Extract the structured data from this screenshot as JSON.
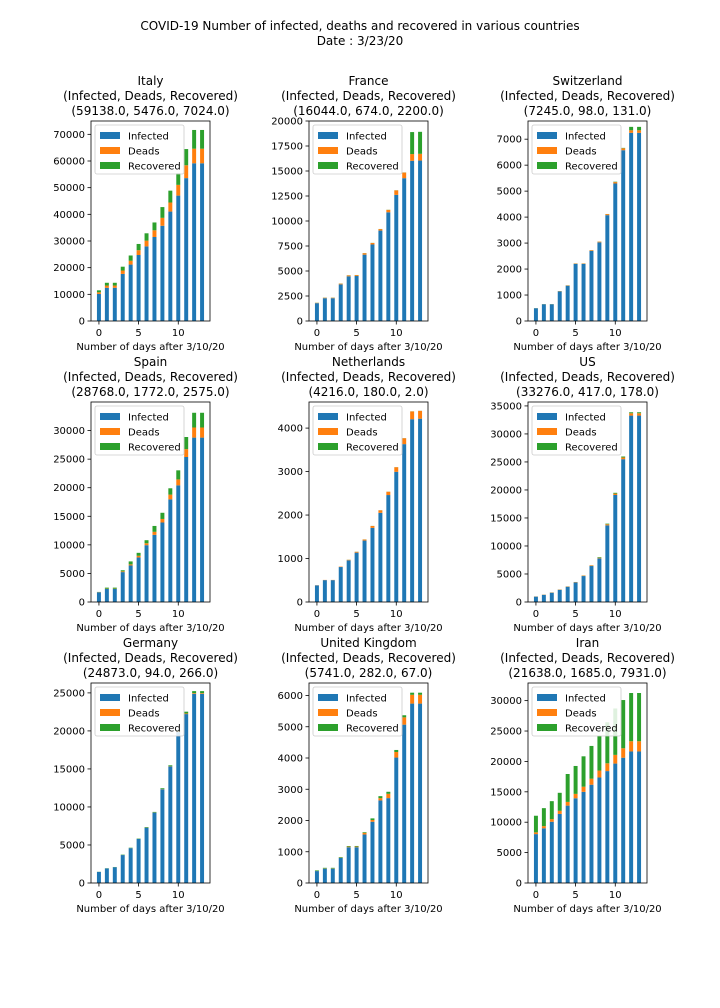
{
  "figure": {
    "title": "COVID-19 Number of infected, deaths and recovered in various countries",
    "subtitle": "Date : 3/23/20",
    "colors": {
      "infected": "#1f77b4",
      "deaths": "#ff7f0e",
      "recovered": "#2ca02c"
    }
  },
  "chart_data": [
    {
      "type": "bar",
      "stacked": true,
      "title": "Italy",
      "subtitle": "(Infected, Deads, Recovered)",
      "totals_label": "(59138.0,  5476.0,  7024.0)",
      "xlabel": "Number of days after 3/10/20",
      "ylabel": "",
      "x": [
        0,
        1,
        2,
        3,
        4,
        5,
        6,
        7,
        8,
        9,
        10,
        11,
        12,
        13
      ],
      "xticks": [
        0,
        5,
        10
      ],
      "ylim": [
        0,
        75000
      ],
      "yticks": [
        0,
        10000,
        20000,
        30000,
        40000,
        50000,
        60000,
        70000
      ],
      "legend": "top-left",
      "grid": false,
      "series": [
        {
          "name": "Infected",
          "values": [
            10149,
            12462,
            12462,
            17660,
            21157,
            24747,
            27980,
            31506,
            35713,
            41035,
            47021,
            53578,
            59138,
            59138
          ]
        },
        {
          "name": "Deads",
          "values": [
            631,
            827,
            827,
            1266,
            1441,
            1809,
            2158,
            2503,
            2978,
            3405,
            4032,
            4825,
            5476,
            5476
          ]
        },
        {
          "name": "Recovered",
          "values": [
            724,
            1045,
            1045,
            1439,
            1966,
            2335,
            2749,
            2941,
            4025,
            4440,
            4440,
            6072,
            7024,
            7024
          ]
        }
      ]
    },
    {
      "type": "bar",
      "stacked": true,
      "title": "France",
      "subtitle": "(Infected, Deads, Recovered)",
      "totals_label": "(16044.0,  674.0,  2200.0)",
      "xlabel": "Number of days after 3/10/20",
      "ylabel": "",
      "x": [
        0,
        1,
        2,
        3,
        4,
        5,
        6,
        7,
        8,
        9,
        10,
        11,
        12,
        13
      ],
      "xticks": [
        0,
        5,
        10
      ],
      "ylim": [
        0,
        20000
      ],
      "yticks": [
        0,
        2500,
        5000,
        7500,
        10000,
        12500,
        15000,
        17500,
        20000
      ],
      "legend": "top-left",
      "grid": false,
      "series": [
        {
          "name": "Infected",
          "values": [
            1784,
            2281,
            2281,
            3661,
            4469,
            4499,
            6633,
            7652,
            9043,
            10871,
            12612,
            14282,
            16018,
            16044
          ]
        },
        {
          "name": "Deads",
          "values": [
            33,
            48,
            48,
            79,
            91,
            91,
            148,
            148,
            148,
            243,
            450,
            562,
            674,
            674
          ]
        },
        {
          "name": "Recovered",
          "values": [
            12,
            12,
            12,
            12,
            12,
            12,
            12,
            12,
            12,
            12,
            12,
            12,
            2200,
            2200
          ]
        }
      ]
    },
    {
      "type": "bar",
      "stacked": true,
      "title": "Switzerland",
      "subtitle": "(Infected, Deads, Recovered)",
      "totals_label": "(7245.0,  98.0,  131.0)",
      "xlabel": "Number of days after 3/10/20",
      "ylabel": "",
      "x": [
        0,
        1,
        2,
        3,
        4,
        5,
        6,
        7,
        8,
        9,
        10,
        11,
        12,
        13
      ],
      "xticks": [
        0,
        5,
        10
      ],
      "ylim": [
        0,
        7700
      ],
      "yticks": [
        0,
        1000,
        2000,
        3000,
        4000,
        5000,
        6000,
        7000
      ],
      "legend": "top-left",
      "grid": false,
      "series": [
        {
          "name": "Infected",
          "values": [
            491,
            645,
            645,
            1139,
            1359,
            2200,
            2200,
            2700,
            3028,
            4075,
            5294,
            6575,
            7245,
            7245
          ]
        },
        {
          "name": "Deads",
          "values": [
            3,
            4,
            4,
            11,
            13,
            14,
            14,
            27,
            28,
            41,
            54,
            75,
            98,
            98
          ]
        },
        {
          "name": "Recovered",
          "values": [
            3,
            4,
            4,
            4,
            4,
            4,
            4,
            4,
            4,
            4,
            15,
            15,
            131,
            131
          ]
        }
      ]
    },
    {
      "type": "bar",
      "stacked": true,
      "title": "Spain",
      "subtitle": "(Infected, Deads, Recovered)",
      "totals_label": "(28768.0,  1772.0,  2575.0)",
      "xlabel": "Number of days after 3/10/20",
      "ylabel": "",
      "x": [
        0,
        1,
        2,
        3,
        4,
        5,
        6,
        7,
        8,
        9,
        10,
        11,
        12,
        13
      ],
      "xticks": [
        0,
        5,
        10
      ],
      "ylim": [
        0,
        35000
      ],
      "yticks": [
        0,
        5000,
        10000,
        15000,
        20000,
        25000,
        30000
      ],
      "legend": "top-left",
      "grid": false,
      "series": [
        {
          "name": "Infected",
          "values": [
            1695,
            2277,
            2277,
            5232,
            6391,
            7798,
            9942,
            11748,
            13910,
            17963,
            20410,
            25374,
            28768,
            28768
          ]
        },
        {
          "name": "Deads",
          "values": [
            35,
            54,
            55,
            133,
            195,
            289,
            342,
            533,
            623,
            830,
            1043,
            1375,
            1772,
            1772
          ]
        },
        {
          "name": "Recovered",
          "values": [
            32,
            183,
            183,
            193,
            517,
            517,
            530,
            1028,
            1081,
            1107,
            1588,
            2125,
            2575,
            2575
          ]
        }
      ]
    },
    {
      "type": "bar",
      "stacked": true,
      "title": "Netherlands",
      "subtitle": "(Infected, Deads, Recovered)",
      "totals_label": "(4216.0,  180.0,  2.0)",
      "xlabel": "Number of days after 3/10/20",
      "ylabel": "",
      "x": [
        0,
        1,
        2,
        3,
        4,
        5,
        6,
        7,
        8,
        9,
        10,
        11,
        12,
        13
      ],
      "xticks": [
        0,
        5,
        10
      ],
      "ylim": [
        0,
        4600
      ],
      "yticks": [
        0,
        1000,
        2000,
        3000,
        4000
      ],
      "legend": "top-left",
      "grid": false,
      "series": [
        {
          "name": "Infected",
          "values": [
            382,
            503,
            503,
            804,
            959,
            1135,
            1413,
            1705,
            2051,
            2460,
            2994,
            3631,
            4204,
            4216
          ]
        },
        {
          "name": "Deads",
          "values": [
            4,
            5,
            5,
            10,
            12,
            20,
            24,
            43,
            58,
            76,
            106,
            136,
            179,
            180
          ]
        },
        {
          "name": "Recovered",
          "values": [
            0,
            0,
            0,
            0,
            2,
            2,
            2,
            2,
            2,
            2,
            2,
            2,
            2,
            2
          ]
        }
      ]
    },
    {
      "type": "bar",
      "stacked": true,
      "title": "US",
      "subtitle": "(Infected, Deads, Recovered)",
      "totals_label": "(33276.0,  417.0,  178.0)",
      "xlabel": "Number of days after 3/10/20",
      "ylabel": "",
      "x": [
        0,
        1,
        2,
        3,
        4,
        5,
        6,
        7,
        8,
        9,
        10,
        11,
        12,
        13
      ],
      "xticks": [
        0,
        5,
        10
      ],
      "ylim": [
        0,
        35700
      ],
      "yticks": [
        0,
        5000,
        10000,
        15000,
        20000,
        25000,
        30000,
        35000
      ],
      "legend": "top-left",
      "grid": false,
      "series": [
        {
          "name": "Infected",
          "values": [
            959,
            1281,
            1663,
            2179,
            2726,
            3499,
            4632,
            6421,
            7786,
            13680,
            19101,
            25493,
            33272,
            33276
          ]
        },
        {
          "name": "Deads",
          "values": [
            28,
            36,
            40,
            47,
            54,
            63,
            85,
            108,
            118,
            200,
            244,
            307,
            417,
            417
          ]
        },
        {
          "name": "Recovered",
          "values": [
            8,
            8,
            12,
            12,
            12,
            12,
            17,
            17,
            106,
            108,
            147,
            171,
            178,
            178
          ]
        }
      ]
    },
    {
      "type": "bar",
      "stacked": true,
      "title": "Germany",
      "subtitle": "(Infected, Deads, Recovered)",
      "totals_label": "(24873.0,  94.0,  266.0)",
      "xlabel": "Number of days after 3/10/20",
      "ylabel": "",
      "x": [
        0,
        1,
        2,
        3,
        4,
        5,
        6,
        7,
        8,
        9,
        10,
        11,
        12,
        13
      ],
      "xticks": [
        0,
        5,
        10
      ],
      "ylim": [
        0,
        26300
      ],
      "yticks": [
        0,
        5000,
        10000,
        15000,
        20000,
        25000
      ],
      "legend": "top-left",
      "grid": false,
      "series": [
        {
          "name": "Infected",
          "values": [
            1457,
            1908,
            2078,
            3675,
            4585,
            5795,
            7272,
            9257,
            12327,
            15320,
            19848,
            22213,
            24873,
            24873
          ]
        },
        {
          "name": "Deads",
          "values": [
            2,
            3,
            3,
            7,
            9,
            11,
            17,
            24,
            28,
            44,
            67,
            84,
            94,
            94
          ]
        },
        {
          "name": "Recovered",
          "values": [
            18,
            25,
            25,
            46,
            46,
            46,
            67,
            67,
            105,
            113,
            180,
            233,
            266,
            266
          ]
        }
      ]
    },
    {
      "type": "bar",
      "stacked": true,
      "title": "United Kingdom",
      "subtitle": "(Infected, Deads, Recovered)",
      "totals_label": "(5741.0,  282.0,  67.0)",
      "xlabel": "Number of days after 3/10/20",
      "ylabel": "",
      "x": [
        0,
        1,
        2,
        3,
        4,
        5,
        6,
        7,
        8,
        9,
        10,
        11,
        12,
        13
      ],
      "xticks": [
        0,
        5,
        10
      ],
      "ylim": [
        0,
        6400
      ],
      "yticks": [
        0,
        1000,
        2000,
        3000,
        4000,
        5000,
        6000
      ],
      "legend": "top-left",
      "grid": false,
      "series": [
        {
          "name": "Infected",
          "values": [
            382,
            459,
            459,
            802,
            1144,
            1145,
            1551,
            1960,
            2642,
            2716,
            4014,
            5067,
            5741,
            5741
          ]
        },
        {
          "name": "Deads",
          "values": [
            6,
            8,
            8,
            8,
            21,
            21,
            56,
            56,
            72,
            138,
            178,
            234,
            282,
            282
          ]
        },
        {
          "name": "Recovered",
          "values": [
            18,
            19,
            19,
            19,
            19,
            19,
            21,
            52,
            65,
            65,
            65,
            67,
            67,
            67
          ]
        }
      ]
    },
    {
      "type": "bar",
      "stacked": true,
      "title": "Iran",
      "subtitle": "(Infected, Deads, Recovered)",
      "totals_label": "(21638.0,  1685.0,  7931.0)",
      "xlabel": "Number of days after 3/10/20",
      "ylabel": "",
      "x": [
        0,
        1,
        2,
        3,
        4,
        5,
        6,
        7,
        8,
        9,
        10,
        11,
        12,
        13
      ],
      "xticks": [
        0,
        5,
        10
      ],
      "ylim": [
        0,
        32900
      ],
      "yticks": [
        0,
        5000,
        10000,
        15000,
        20000,
        25000,
        30000
      ],
      "legend": "top-left",
      "grid": false,
      "series": [
        {
          "name": "Infected",
          "values": [
            8042,
            9000,
            10075,
            11364,
            12729,
            13938,
            14991,
            16169,
            17361,
            18407,
            19644,
            20610,
            21638,
            21638
          ]
        },
        {
          "name": "Deads",
          "values": [
            291,
            354,
            429,
            514,
            611,
            724,
            853,
            988,
            1135,
            1284,
            1433,
            1556,
            1685,
            1685
          ]
        },
        {
          "name": "Recovered",
          "values": [
            2731,
            2959,
            2959,
            2959,
            4590,
            4590,
            4996,
            5389,
            5710,
            6745,
            7635,
            7931,
            7931,
            7931
          ]
        }
      ]
    }
  ]
}
